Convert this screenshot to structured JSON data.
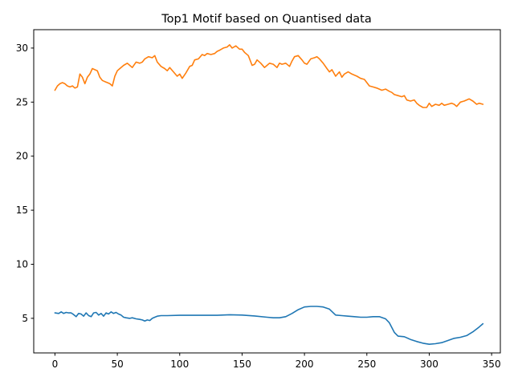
{
  "chart_data": {
    "type": "line",
    "title": "Top1 Motif based on Quantised data",
    "xlabel": "",
    "ylabel": "",
    "xlim": [
      -17,
      357
    ],
    "ylim": [
      1.8,
      31.7
    ],
    "grid": false,
    "xticks": [
      0,
      50,
      100,
      150,
      200,
      250,
      300,
      350
    ],
    "yticks": [
      5,
      10,
      15,
      20,
      25,
      30
    ],
    "series": [
      {
        "color": "#1f77b4",
        "x": [
          0,
          3,
          5,
          7,
          9,
          11,
          13,
          15,
          17,
          19,
          21,
          23,
          25,
          27,
          29,
          31,
          33,
          35,
          37,
          39,
          41,
          43,
          45,
          47,
          49,
          51,
          53,
          55,
          57,
          60,
          62,
          65,
          68,
          70,
          72,
          74,
          76,
          78,
          80,
          82,
          85,
          90,
          100,
          110,
          120,
          130,
          140,
          150,
          160,
          170,
          175,
          180,
          185,
          190,
          195,
          200,
          205,
          210,
          215,
          220,
          225,
          230,
          235,
          240,
          245,
          250,
          255,
          260,
          265,
          268,
          272,
          275,
          280,
          285,
          290,
          295,
          300,
          305,
          310,
          315,
          320,
          325,
          330,
          335,
          340,
          343
        ],
        "y": [
          5.5,
          5.45,
          5.6,
          5.45,
          5.55,
          5.5,
          5.5,
          5.35,
          5.15,
          5.45,
          5.4,
          5.2,
          5.5,
          5.25,
          5.15,
          5.5,
          5.55,
          5.3,
          5.45,
          5.2,
          5.5,
          5.4,
          5.6,
          5.45,
          5.55,
          5.4,
          5.3,
          5.1,
          5.05,
          5.0,
          5.05,
          4.95,
          4.9,
          4.85,
          4.75,
          4.85,
          4.8,
          5.0,
          5.1,
          5.2,
          5.25,
          5.25,
          5.28,
          5.28,
          5.28,
          5.28,
          5.33,
          5.3,
          5.22,
          5.1,
          5.05,
          5.05,
          5.15,
          5.45,
          5.8,
          6.05,
          6.1,
          6.1,
          6.05,
          5.85,
          5.3,
          5.25,
          5.2,
          5.15,
          5.1,
          5.1,
          5.15,
          5.15,
          4.95,
          4.6,
          3.7,
          3.35,
          3.3,
          3.05,
          2.85,
          2.7,
          2.6,
          2.65,
          2.75,
          2.95,
          3.15,
          3.25,
          3.4,
          3.75,
          4.2,
          4.5
        ]
      },
      {
        "color": "#ff7f0e",
        "x": [
          0,
          2,
          4,
          6,
          8,
          10,
          12,
          14,
          16,
          18,
          20,
          22,
          24,
          26,
          28,
          30,
          32,
          34,
          36,
          38,
          40,
          42,
          44,
          46,
          48,
          50,
          52,
          55,
          58,
          60,
          62,
          65,
          68,
          70,
          72,
          75,
          78,
          80,
          82,
          85,
          88,
          90,
          92,
          95,
          98,
          100,
          102,
          105,
          108,
          110,
          112,
          115,
          118,
          120,
          122,
          125,
          128,
          130,
          132,
          135,
          138,
          140,
          142,
          145,
          148,
          150,
          152,
          155,
          158,
          160,
          162,
          165,
          168,
          170,
          172,
          175,
          178,
          180,
          182,
          185,
          188,
          190,
          192,
          195,
          198,
          200,
          202,
          205,
          208,
          210,
          212,
          215,
          218,
          220,
          222,
          225,
          228,
          230,
          232,
          235,
          238,
          240,
          242,
          245,
          248,
          250,
          252,
          255,
          258,
          260,
          262,
          265,
          268,
          270,
          272,
          275,
          278,
          280,
          282,
          285,
          288,
          290,
          292,
          295,
          298,
          300,
          302,
          305,
          308,
          310,
          312,
          315,
          318,
          320,
          322,
          325,
          328,
          330,
          332,
          335,
          338,
          340,
          343
        ],
        "y": [
          26.1,
          26.5,
          26.7,
          26.8,
          26.7,
          26.5,
          26.4,
          26.5,
          26.3,
          26.4,
          27.6,
          27.3,
          26.7,
          27.3,
          27.6,
          28.1,
          28.0,
          27.9,
          27.3,
          27.0,
          26.9,
          26.8,
          26.7,
          26.5,
          27.4,
          27.9,
          28.1,
          28.4,
          28.6,
          28.4,
          28.2,
          28.7,
          28.6,
          28.7,
          29.0,
          29.2,
          29.1,
          29.3,
          28.7,
          28.3,
          28.1,
          27.9,
          28.2,
          27.8,
          27.4,
          27.6,
          27.2,
          27.7,
          28.3,
          28.4,
          28.9,
          29.0,
          29.4,
          29.3,
          29.5,
          29.4,
          29.5,
          29.7,
          29.8,
          30.0,
          30.1,
          30.3,
          30.0,
          30.2,
          29.9,
          29.9,
          29.6,
          29.3,
          28.4,
          28.5,
          28.9,
          28.6,
          28.2,
          28.4,
          28.6,
          28.5,
          28.2,
          28.6,
          28.5,
          28.6,
          28.3,
          28.8,
          29.2,
          29.3,
          28.9,
          28.6,
          28.5,
          29.0,
          29.1,
          29.2,
          29.0,
          28.6,
          28.1,
          27.8,
          28.0,
          27.4,
          27.8,
          27.3,
          27.6,
          27.8,
          27.6,
          27.5,
          27.4,
          27.2,
          27.1,
          26.8,
          26.5,
          26.4,
          26.3,
          26.2,
          26.1,
          26.2,
          26.0,
          25.9,
          25.7,
          25.6,
          25.5,
          25.6,
          25.2,
          25.1,
          25.2,
          24.9,
          24.7,
          24.5,
          24.5,
          24.9,
          24.6,
          24.8,
          24.7,
          24.9,
          24.7,
          24.8,
          24.9,
          24.8,
          24.6,
          25.0,
          25.1,
          25.2,
          25.3,
          25.1,
          24.8,
          24.9,
          24.8
        ]
      }
    ]
  }
}
